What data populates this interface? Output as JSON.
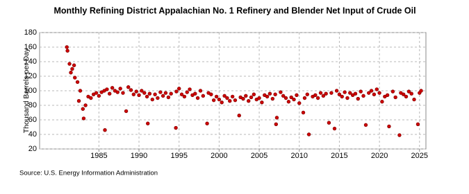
{
  "chart_data": {
    "type": "scatter",
    "title": "Monthly Refining District Appalachian No. 1 Refinery and Blender Net Input of Crude Oil",
    "y_label": "Thousand Barrels per Day",
    "source": "Source: U.S. Energy Information Administration",
    "color": "#cc0000",
    "edge_color": "#7a0000",
    "grid": true,
    "xlim": [
      1977.6,
      2025.8
    ],
    "xticks": [
      1985,
      1990,
      1995,
      2000,
      2005,
      2010,
      2015,
      2020,
      2025
    ],
    "ylim": [
      20,
      180
    ],
    "yticks": [
      20,
      40,
      60,
      80,
      100,
      120,
      140,
      160,
      180
    ],
    "x": [
      1981.0,
      1981.08,
      1981.33,
      1981.5,
      1981.67,
      1981.9,
      1982.0,
      1982.33,
      1982.5,
      1982.67,
      1983.0,
      1983.1,
      1983.33,
      1983.67,
      1984.0,
      1984.33,
      1984.67,
      1985.0,
      1985.33,
      1985.67,
      1985.75,
      1986.0,
      1986.33,
      1986.67,
      1987.0,
      1987.33,
      1987.67,
      1988.0,
      1988.4,
      1988.67,
      1989.0,
      1989.33,
      1989.67,
      1990.0,
      1990.33,
      1990.67,
      1991.0,
      1991.1,
      1991.33,
      1991.67,
      1992.0,
      1992.33,
      1992.67,
      1993.0,
      1993.33,
      1993.67,
      1994.0,
      1994.6,
      1994.67,
      1995.0,
      1995.33,
      1995.67,
      1996.0,
      1996.33,
      1996.67,
      1997.0,
      1997.33,
      1997.67,
      1998.0,
      1998.5,
      1998.67,
      1999.0,
      1999.33,
      1999.67,
      2000.0,
      2000.33,
      2000.67,
      2001.0,
      2001.33,
      2001.67,
      2002.0,
      2002.5,
      2002.67,
      2003.0,
      2003.33,
      2003.67,
      2004.0,
      2004.33,
      2004.67,
      2005.0,
      2005.33,
      2005.67,
      2006.0,
      2006.33,
      2006.67,
      2007.0,
      2007.1,
      2007.2,
      2007.67,
      2008.0,
      2008.33,
      2008.67,
      2009.0,
      2009.33,
      2009.67,
      2010.0,
      2010.5,
      2010.67,
      2011.0,
      2011.2,
      2011.67,
      2012.0,
      2012.33,
      2012.67,
      2013.0,
      2013.33,
      2013.7,
      2014.0,
      2014.4,
      2014.67,
      2015.0,
      2015.33,
      2015.67,
      2016.0,
      2016.33,
      2016.67,
      2017.0,
      2017.33,
      2017.67,
      2018.0,
      2018.3,
      2018.67,
      2019.0,
      2019.33,
      2019.67,
      2020.0,
      2020.33,
      2020.67,
      2021.0,
      2021.2,
      2021.67,
      2022.0,
      2022.5,
      2022.67,
      2023.0,
      2023.33,
      2023.67,
      2024.0,
      2024.33,
      2024.8,
      2025.0,
      2025.2
    ],
    "values": [
      160,
      155,
      137,
      125,
      130,
      135,
      118,
      112,
      86,
      100,
      75,
      62,
      80,
      92,
      90,
      95,
      97,
      93,
      98,
      100,
      46,
      102,
      96,
      104,
      100,
      98,
      103,
      97,
      72,
      105,
      101,
      95,
      99,
      94,
      100,
      97,
      92,
      55,
      96,
      88,
      95,
      90,
      98,
      93,
      97,
      91,
      96,
      49,
      99,
      103,
      95,
      92,
      98,
      102,
      94,
      96,
      90,
      100,
      93,
      55,
      97,
      95,
      87,
      92,
      88,
      84,
      93,
      90,
      86,
      92,
      87,
      66,
      91,
      89,
      93,
      86,
      91,
      95,
      88,
      90,
      84,
      94,
      92,
      96,
      89,
      95,
      54,
      63,
      98,
      93,
      90,
      85,
      91,
      88,
      94,
      83,
      70,
      90,
      95,
      40,
      92,
      94,
      90,
      97,
      93,
      96,
      56,
      97,
      48,
      100,
      95,
      92,
      98,
      90,
      97,
      94,
      96,
      89,
      99,
      93,
      53,
      97,
      100,
      95,
      102,
      97,
      85,
      92,
      94,
      51,
      99,
      91,
      39,
      97,
      95,
      92,
      99,
      96,
      88,
      54,
      97,
      100
    ]
  }
}
